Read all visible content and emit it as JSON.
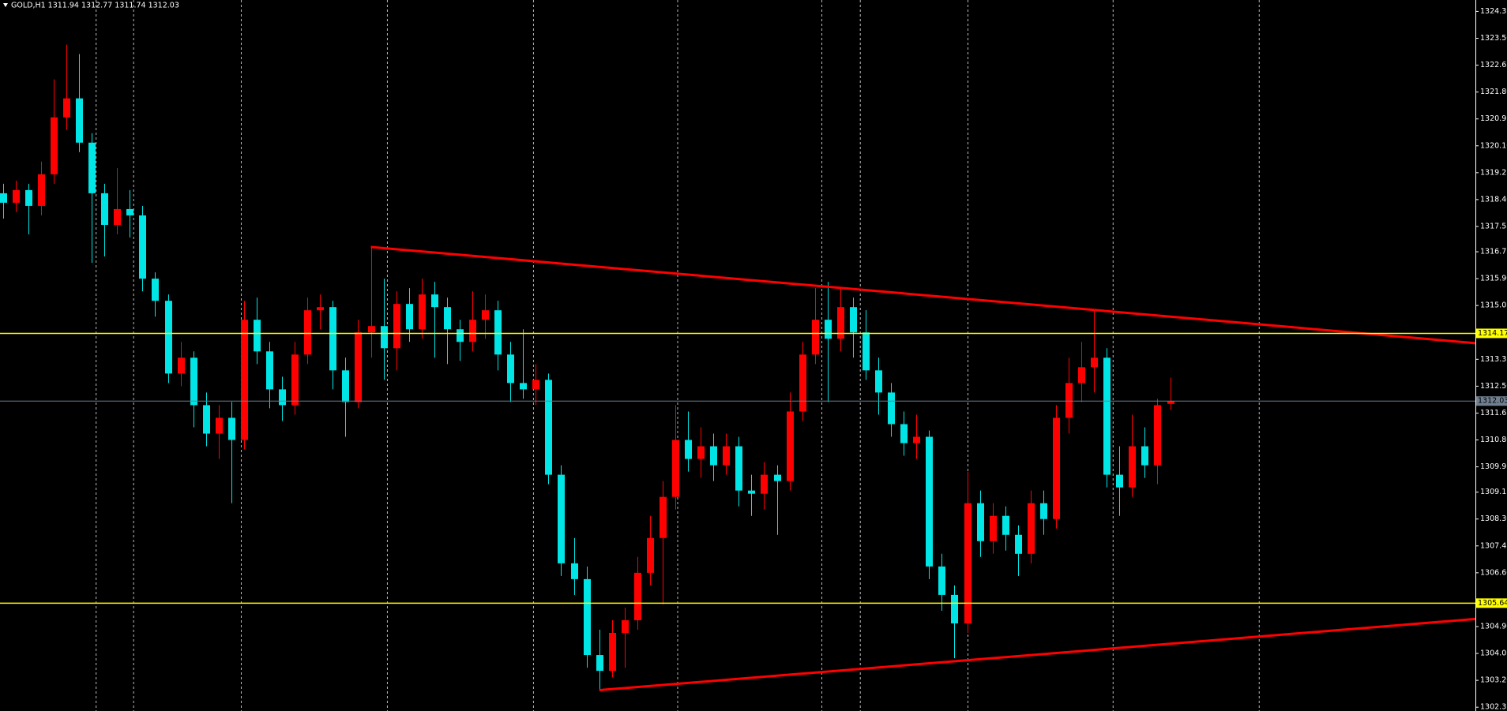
{
  "chart_data": {
    "type": "candlestick",
    "title": "GOLD,H1  1311.94 1312.77 1311.74 1312.03",
    "background": "#000000",
    "up_color": "#ff0000",
    "down_color": "#00e5e5",
    "xlim": [
      -0.23,
      116.06
    ],
    "ylim": [
      1302.23,
      1324.71
    ],
    "yticks": [
      1324.35,
      {
        "value": 1323.5,
        "label": "1323.50"
      },
      1322.65,
      {
        "value": 1321.8,
        "label": "1321.80"
      },
      1320.95,
      {
        "value": 1320.1,
        "label": "1320.10"
      },
      1319.25,
      {
        "value": 1318.4,
        "label": "1318.40"
      },
      1317.55,
      1316.75,
      {
        "value": 1315.9,
        "label": "1315.90"
      },
      1315.05,
      1313.35,
      {
        "value": 1312.5,
        "label": "1312.50"
      },
      1311.65,
      {
        "value": 1310.8,
        "label": "1310.80"
      },
      1309.95,
      1309.15,
      {
        "value": 1308.3,
        "label": "1308.30"
      },
      1307.45,
      {
        "value": 1306.6,
        "label": "1306.60"
      },
      {
        "value": 1304.9,
        "label": "1304.90"
      },
      1304.05,
      {
        "value": 1303.2,
        "label": "1303.20"
      },
      1302.35
    ],
    "series": {
      "open": [
        1318.6,
        1318.3,
        1318.7,
        1318.2,
        1319.2,
        1321.0,
        1321.6,
        1320.2,
        1318.6,
        1317.6,
        1318.1,
        1317.9,
        1315.9,
        1315.2,
        1312.9,
        1313.4,
        1311.9,
        1311.0,
        1311.5,
        1310.8,
        1314.6,
        1313.6,
        1312.4,
        1311.9,
        1313.5,
        1314.9,
        1315.0,
        1313.0,
        1312.0,
        1314.2,
        1314.4,
        1313.7,
        1315.1,
        1314.3,
        1315.4,
        1315.0,
        1314.3,
        1313.9,
        1314.6,
        1314.9,
        1313.5,
        1312.6,
        1312.4,
        1312.7,
        1309.7,
        1306.9,
        1306.4,
        1304.0,
        1303.5,
        1304.7,
        1305.1,
        1306.6,
        1307.7,
        1309.0,
        1310.8,
        1310.2,
        1310.6,
        1310.0,
        1310.6,
        1309.2,
        1309.1,
        1309.7,
        1309.5,
        1311.7,
        1313.5,
        1314.6,
        1314.0,
        1315.0,
        1314.2,
        1313.0,
        1312.3,
        1311.3,
        1310.7,
        1310.9,
        1306.8,
        1305.9,
        1305.0,
        1308.8,
        1307.6,
        1308.4,
        1307.8,
        1307.2,
        1308.8,
        1308.3,
        1311.5,
        1312.6,
        1313.1,
        1313.4,
        1309.7,
        1309.3,
        1310.6,
        1310.0,
        1311.94
      ],
      "high": [
        1318.9,
        1319.0,
        1318.9,
        1319.6,
        1322.2,
        1323.3,
        1323.0,
        1320.5,
        1318.9,
        1319.4,
        1318.7,
        1318.2,
        1316.1,
        1315.4,
        1313.9,
        1313.6,
        1312.3,
        1311.9,
        1312.0,
        1315.2,
        1315.3,
        1313.9,
        1312.8,
        1313.9,
        1315.3,
        1315.4,
        1315.2,
        1313.4,
        1314.6,
        1316.9,
        1315.9,
        1315.5,
        1315.6,
        1315.9,
        1315.8,
        1315.3,
        1314.6,
        1315.5,
        1315.4,
        1315.2,
        1313.9,
        1314.3,
        1313.2,
        1312.9,
        1310.0,
        1307.7,
        1306.8,
        1304.8,
        1305.1,
        1305.5,
        1307.1,
        1308.4,
        1309.5,
        1311.9,
        1311.7,
        1311.2,
        1311.0,
        1311.0,
        1310.9,
        1309.7,
        1310.1,
        1310.0,
        1312.3,
        1313.9,
        1315.6,
        1315.8,
        1315.6,
        1315.3,
        1314.9,
        1313.4,
        1312.6,
        1311.7,
        1311.6,
        1311.1,
        1307.2,
        1306.2,
        1309.8,
        1309.2,
        1308.8,
        1308.7,
        1308.1,
        1309.2,
        1309.2,
        1311.9,
        1313.4,
        1313.9,
        1314.9,
        1313.7,
        1310.6,
        1311.6,
        1311.2,
        1312.1,
        1312.77
      ],
      "low": [
        1317.8,
        1318.0,
        1317.3,
        1317.9,
        1318.9,
        1320.6,
        1319.9,
        1316.4,
        1316.6,
        1317.3,
        1317.2,
        1315.5,
        1314.7,
        1312.6,
        1312.5,
        1311.2,
        1310.6,
        1310.2,
        1308.8,
        1310.5,
        1313.2,
        1311.8,
        1311.4,
        1311.6,
        1313.2,
        1314.3,
        1312.4,
        1310.9,
        1311.8,
        1313.4,
        1312.7,
        1313.0,
        1313.9,
        1314.0,
        1313.4,
        1313.2,
        1313.3,
        1313.6,
        1314.0,
        1313.0,
        1312.0,
        1312.1,
        1311.9,
        1309.4,
        1306.5,
        1305.9,
        1303.6,
        1302.89,
        1303.3,
        1303.6,
        1304.8,
        1306.2,
        1305.6,
        1308.6,
        1309.8,
        1309.6,
        1309.5,
        1309.7,
        1308.7,
        1308.4,
        1308.6,
        1307.8,
        1309.2,
        1311.4,
        1313.2,
        1312.0,
        1313.6,
        1313.4,
        1312.7,
        1311.6,
        1310.9,
        1310.3,
        1310.2,
        1306.4,
        1305.4,
        1303.9,
        1304.7,
        1307.1,
        1307.2,
        1307.3,
        1306.5,
        1306.9,
        1307.8,
        1308.0,
        1311.0,
        1312.0,
        1312.3,
        1309.3,
        1308.4,
        1309.0,
        1309.6,
        1309.4,
        1311.74
      ],
      "close": [
        1318.3,
        1318.7,
        1318.2,
        1319.2,
        1321.0,
        1321.6,
        1320.2,
        1318.6,
        1317.6,
        1318.1,
        1317.9,
        1315.9,
        1315.2,
        1312.9,
        1313.4,
        1311.9,
        1311.0,
        1311.5,
        1310.8,
        1314.6,
        1313.6,
        1312.4,
        1311.9,
        1313.5,
        1314.9,
        1315.0,
        1313.0,
        1312.0,
        1314.2,
        1314.4,
        1313.7,
        1315.1,
        1314.3,
        1315.4,
        1315.0,
        1314.3,
        1313.9,
        1314.6,
        1314.9,
        1313.5,
        1312.6,
        1312.4,
        1312.7,
        1309.7,
        1306.9,
        1306.4,
        1304.0,
        1303.5,
        1304.7,
        1305.1,
        1306.6,
        1307.7,
        1309.0,
        1310.8,
        1310.2,
        1310.6,
        1310.0,
        1310.6,
        1309.2,
        1309.1,
        1309.7,
        1309.5,
        1311.7,
        1313.5,
        1314.6,
        1314.0,
        1315.0,
        1314.2,
        1313.0,
        1312.3,
        1311.3,
        1310.7,
        1310.9,
        1306.8,
        1305.9,
        1305.0,
        1308.8,
        1307.6,
        1308.4,
        1307.8,
        1307.2,
        1308.8,
        1308.3,
        1311.5,
        1312.6,
        1313.1,
        1313.4,
        1309.7,
        1309.3,
        1310.6,
        1310.0,
        1311.9,
        1312.03
      ]
    },
    "hlines": [
      {
        "value": 1314.17,
        "color": "#ffff00"
      },
      {
        "value": 1305.64,
        "color": "#ffff00"
      },
      {
        "value": 1312.03,
        "color": "#708090"
      }
    ],
    "trendlines": [
      {
        "x": [
          29,
          116.06
        ],
        "y": [
          1316.9,
          1313.86
        ],
        "color": "#ff0000"
      },
      {
        "x": [
          47,
          116.06
        ],
        "y": [
          1302.89,
          1305.14
        ],
        "color": "#ff0000"
      }
    ]
  }
}
